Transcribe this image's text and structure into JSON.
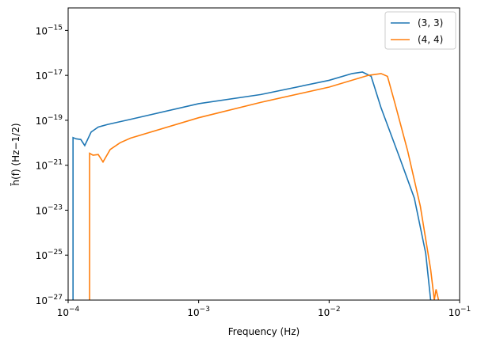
{
  "chart_data": {
    "type": "line",
    "log_x": true,
    "log_y": true,
    "x_label": "Frequency (Hz)",
    "y_label": "h̃(f) (Hz−1/2)",
    "legend": "upper right",
    "xlim": [
      0.0001,
      0.1
    ],
    "xticks": [
      {
        "value": 0.0001,
        "label": "10−4"
      },
      {
        "value": 0.001,
        "label": "10−3"
      },
      {
        "value": 0.01,
        "label": "10−2"
      },
      {
        "value": 0.1,
        "label": "10−1"
      }
    ],
    "ylim": [
      1e-27,
      1e-14
    ],
    "yticks": [
      {
        "value": 1e-27,
        "label": "10−27"
      },
      {
        "value": 1e-25,
        "label": "10−25"
      },
      {
        "value": 1e-23,
        "label": "10−23"
      },
      {
        "value": 1e-21,
        "label": "10−21"
      },
      {
        "value": 1e-19,
        "label": "10−19"
      },
      {
        "value": 1e-17,
        "label": "10−17"
      },
      {
        "value": 1e-15,
        "label": "10−15"
      }
    ],
    "series": [
      {
        "name": "(3, 3)",
        "color": "#1f77b4",
        "x": [
          0.000109,
          0.000109,
          0.000115,
          0.000125,
          0.000134,
          0.00015,
          0.00017,
          0.0002,
          0.0003,
          0.001,
          0.003,
          0.01,
          0.015,
          0.018,
          0.021,
          0.025,
          0.035,
          0.045,
          0.055,
          0.06
        ],
        "values": [
          1e-27,
          1.7e-20,
          1.5e-20,
          1.4e-20,
          7.5e-21,
          3e-20,
          5e-20,
          6.5e-20,
          1.1e-19,
          5.5e-19,
          1.4e-18,
          6e-18,
          1.2e-17,
          1.4e-17,
          9e-18,
          3.6e-19,
          1.9e-21,
          3.4e-23,
          1.2e-25,
          1e-27
        ]
      },
      {
        "name": "(4, 4)",
        "color": "#ff7f0e",
        "x": [
          0.000146,
          0.000146,
          0.000155,
          0.00017,
          0.000185,
          0.00021,
          0.00025,
          0.0003,
          0.001,
          0.003,
          0.01,
          0.02,
          0.025,
          0.028,
          0.032,
          0.04,
          0.05,
          0.06,
          0.064,
          0.066,
          0.069
        ],
        "values": [
          1e-27,
          3.4e-21,
          2.8e-21,
          3e-21,
          1.4e-21,
          5e-21,
          1e-20,
          1.6e-20,
          1.3e-19,
          6.3e-19,
          3e-18,
          1e-17,
          1.2e-17,
          9e-18,
          5.5e-19,
          4.3e-21,
          1.5e-23,
          2.3e-26,
          1e-27,
          3e-27,
          1e-27
        ]
      }
    ]
  }
}
